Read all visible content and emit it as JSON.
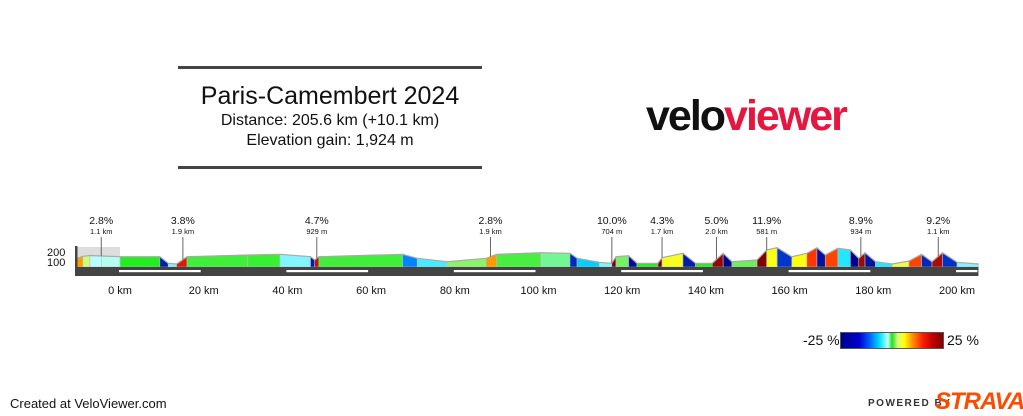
{
  "header": {
    "title": "Paris-Camembert 2024",
    "distance": "Distance: 205.6 km (+10.1 km)",
    "elevation_gain": "Elevation gain: 1,924 m"
  },
  "logo": {
    "part1": "velo",
    "part2": "viewer"
  },
  "chart_data": {
    "type": "area",
    "title": "",
    "xlabel": "",
    "ylabel": "",
    "x_unit": "km",
    "y_unit": "m",
    "xlim": [
      -10.1,
      205.6
    ],
    "x_ticks": [
      0,
      20,
      40,
      60,
      80,
      100,
      120,
      140,
      160,
      180,
      200
    ],
    "x_tick_labels": [
      "0 km",
      "20 km",
      "40 km",
      "60 km",
      "80 km",
      "100 km",
      "120 km",
      "140 km",
      "160 km",
      "180 km",
      "200 km"
    ],
    "y_ticks": [
      100,
      200
    ],
    "y_tick_labels": [
      "100",
      "200"
    ],
    "profile": [
      [
        -10.1,
        130
      ],
      [
        -8.4,
        157
      ],
      [
        -6.7,
        165
      ],
      [
        -4,
        160
      ],
      [
        0.5,
        153
      ],
      [
        10,
        153
      ],
      [
        12,
        87
      ],
      [
        14,
        80
      ],
      [
        16.5,
        153
      ],
      [
        31,
        170
      ],
      [
        38.7,
        177
      ],
      [
        46,
        153
      ],
      [
        47,
        120
      ],
      [
        48,
        153
      ],
      [
        68,
        177
      ],
      [
        71.5,
        137
      ],
      [
        78.6,
        103
      ],
      [
        88,
        137
      ],
      [
        90.5,
        177
      ],
      [
        101,
        193
      ],
      [
        108,
        187
      ],
      [
        109.7,
        137
      ],
      [
        115,
        97
      ],
      [
        118,
        87
      ],
      [
        119,
        153
      ],
      [
        122,
        163
      ],
      [
        124,
        87
      ],
      [
        129,
        87
      ],
      [
        130,
        143
      ],
      [
        135,
        187
      ],
      [
        138,
        87
      ],
      [
        142,
        87
      ],
      [
        144.6,
        187
      ],
      [
        146.7,
        103
      ],
      [
        152.7,
        120
      ],
      [
        155,
        220
      ],
      [
        157.5,
        243
      ],
      [
        161,
        153
      ],
      [
        164.6,
        187
      ],
      [
        167,
        243
      ],
      [
        169,
        170
      ],
      [
        172,
        237
      ],
      [
        175,
        220
      ],
      [
        177,
        137
      ],
      [
        178.5,
        193
      ],
      [
        181,
        103
      ],
      [
        185,
        80
      ],
      [
        189,
        110
      ],
      [
        192,
        177
      ],
      [
        194.5,
        103
      ],
      [
        197,
        193
      ],
      [
        200.5,
        97
      ],
      [
        205.6,
        80
      ]
    ],
    "climbs": [
      {
        "km": -4,
        "gradient": "2.8%",
        "length": "1.1 km"
      },
      {
        "km": 15.5,
        "gradient": "3.8%",
        "length": "1.9 km"
      },
      {
        "km": 47.5,
        "gradient": "4.7%",
        "length": "929 m"
      },
      {
        "km": 89,
        "gradient": "2.8%",
        "length": "1.9 km"
      },
      {
        "km": 118,
        "gradient": "10.0%",
        "length": "704 m"
      },
      {
        "km": 130,
        "gradient": "4.3%",
        "length": "1.7 km"
      },
      {
        "km": 143,
        "gradient": "5.0%",
        "length": "2.0 km"
      },
      {
        "km": 155,
        "gradient": "11.9%",
        "length": "581 m"
      },
      {
        "km": 177.5,
        "gradient": "8.9%",
        "length": "934 m"
      },
      {
        "km": 196,
        "gradient": "9.2%",
        "length": "1.1 km"
      }
    ],
    "legend": {
      "min_label": "-25 %",
      "max_label": "25 %",
      "range": [
        -25,
        25
      ]
    },
    "colors": {
      "flat": "#22ee22",
      "bar": "#444444",
      "outline": "#aaaaaa"
    }
  },
  "footer": {
    "created": "Created at VeloViewer.com",
    "powered_by": "POWERED BY",
    "strava": "STRAVA"
  }
}
